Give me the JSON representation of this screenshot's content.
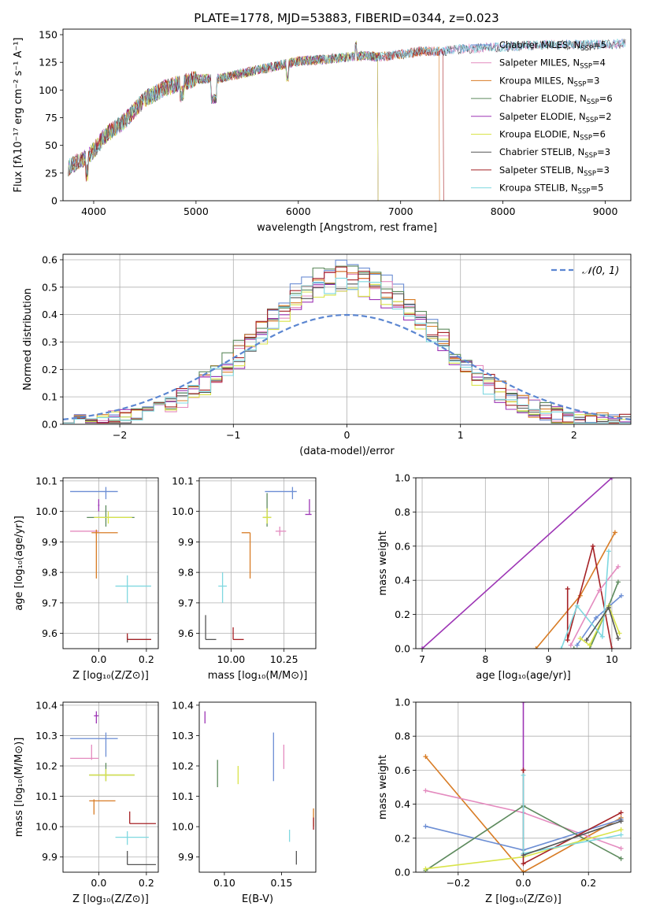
{
  "chart_data": [
    {
      "type": "line",
      "title": "PLATE=1778, MJD=53883, FIBERID=0344, z=0.023",
      "xlabel": "wavelength [Angstrom, rest frame]",
      "ylabel": "Flux [fλ10⁻¹⁷ erg cm⁻² s⁻¹ A⁻¹]",
      "xlim": [
        3700,
        9250
      ],
      "ylim": [
        0,
        155
      ],
      "xticks": [
        "4000",
        "5000",
        "6000",
        "7000",
        "8000",
        "9000"
      ],
      "yticks": [
        "0",
        "25",
        "50",
        "75",
        "100",
        "125",
        "150"
      ],
      "grid": false,
      "legend_position": "top-right",
      "continuum": {
        "x": [
          3750,
          3900,
          4000,
          4100,
          4300,
          4500,
          4700,
          5000,
          5200,
          5500,
          5800,
          6000,
          6300,
          6600,
          6800,
          7000,
          7200,
          7400,
          7600,
          7800,
          8000,
          8200,
          8500,
          8800,
          9000,
          9200
        ],
        "y": [
          30,
          38,
          45,
          58,
          72,
          92,
          102,
          110,
          110,
          116,
          122,
          126,
          128,
          131,
          130,
          132,
          135,
          135,
          137,
          138,
          139,
          140,
          141,
          141,
          141,
          142
        ]
      },
      "series": [
        {
          "name": "Chabrier MILES, N$_{SSP}$=5",
          "label_main": "Chabrier MILES, N",
          "label_sub": "SSP",
          "label_tail": "=5",
          "color": "#6c8ed4",
          "end": 9200
        },
        {
          "name": "Salpeter MILES, N$_{SSP}$=4",
          "label_main": "Salpeter MILES, N",
          "label_sub": "SSP",
          "label_tail": "=4",
          "color": "#e48bbf",
          "end": 9200
        },
        {
          "name": "Kroupa MILES, N$_{SSP}$=3",
          "label_main": "Kroupa MILES, N",
          "label_sub": "SSP",
          "label_tail": "=3",
          "color": "#d87c25",
          "end": 7380
        },
        {
          "name": "Chabrier ELODIE, N$_{SSP}$=6",
          "label_main": "Chabrier ELODIE, N",
          "label_sub": "SSP",
          "label_tail": "=6",
          "color": "#5d8a5d",
          "end": 6780
        },
        {
          "name": "Salpeter ELODIE, N$_{SSP}$=2",
          "label_main": "Salpeter ELODIE, N",
          "label_sub": "SSP",
          "label_tail": "=2",
          "color": "#9d35b5",
          "end": 6780
        },
        {
          "name": "Kroupa ELODIE, N$_{SSP}$=6",
          "label_main": "Kroupa ELODIE, N",
          "label_sub": "SSP",
          "label_tail": "=6",
          "color": "#d9e44a",
          "end": 6780
        },
        {
          "name": "Chabrier STELIB, N$_{SSP}$=3",
          "label_main": "Chabrier STELIB, N",
          "label_sub": "SSP",
          "label_tail": "=3",
          "color": "#555555",
          "end": 9200
        },
        {
          "name": "Salpeter STELIB, N$_{SSP}$=3",
          "label_main": "Salpeter STELIB, N",
          "label_sub": "SSP",
          "label_tail": "=3",
          "color": "#a52125",
          "end": 7420
        },
        {
          "name": "Kroupa STELIB, N$_{SSP}$=5",
          "label_main": "Kroupa STELIB, N",
          "label_sub": "SSP",
          "label_tail": "=5",
          "color": "#7fd8e0",
          "end": 9200
        }
      ]
    },
    {
      "type": "line",
      "xlabel": "(data-model)/error",
      "ylabel": "Normed distribution",
      "xlim": [
        -2.5,
        2.5
      ],
      "ylim": [
        0,
        0.62
      ],
      "xticks": [
        "−2",
        "−1",
        "0",
        "1",
        "2"
      ],
      "yticks": [
        "0.0",
        "0.1",
        "0.2",
        "0.3",
        "0.4",
        "0.5",
        "0.6"
      ],
      "grid": true,
      "legend_position": "top-right",
      "legend_label": "𝒩(0, 1)",
      "reference_curve": {
        "name": "N(0,1)",
        "mean": 0,
        "sigma": 1,
        "color": "#5b86d1"
      },
      "histogram_bin_edges_range": [
        -2.5,
        2.5
      ],
      "histogram_bin_width": 0.1,
      "histogram_peak_values": [
        0.57,
        0.54,
        0.55,
        0.58,
        0.5,
        0.51,
        0.53,
        0.55,
        0.52
      ]
    },
    {
      "type": "scatter",
      "xlabel": "Z [log₁₀(Z/Z⊙)]",
      "ylabel": "age  [log₁₀(age/yr)]",
      "xlim": [
        -0.15,
        0.25
      ],
      "ylim": [
        9.55,
        10.11
      ],
      "xticks": [
        "0.0",
        "0.2"
      ],
      "yticks": [
        "9.6",
        "9.7",
        "9.8",
        "9.9",
        "10.0",
        "10.1"
      ],
      "grid": true,
      "points": [
        {
          "color": "#6c8ed4",
          "x": 0.03,
          "xlo": -0.12,
          "xhi": 0.08,
          "y": 10.065,
          "ylo": 10.04,
          "yhi": 10.08
        },
        {
          "color": "#e48bbf",
          "x": -0.01,
          "xlo": -0.12,
          "xhi": 0.0,
          "y": 9.935,
          "ylo": 9.92,
          "yhi": 9.94
        },
        {
          "color": "#d87c25",
          "x": -0.01,
          "xlo": -0.03,
          "xhi": 0.08,
          "y": 9.93,
          "ylo": 9.78,
          "yhi": 9.94
        },
        {
          "color": "#5d8a5d",
          "x": 0.03,
          "xlo": -0.05,
          "xhi": 0.15,
          "y": 9.98,
          "ylo": 9.95,
          "yhi": 10.02
        },
        {
          "color": "#9d35b5",
          "x": 0.0,
          "xlo": -0.003,
          "xhi": 0.003,
          "y": 10.02,
          "ylo": 10.0,
          "yhi": 10.04
        },
        {
          "color": "#d9e44a",
          "x": 0.04,
          "xlo": -0.02,
          "xhi": 0.14,
          "y": 9.98,
          "ylo": 9.96,
          "yhi": 10.0
        },
        {
          "color": "#555555",
          "x": 0.12,
          "xlo": 0.12,
          "xhi": 0.22,
          "y": 9.58,
          "ylo": 9.57,
          "yhi": 9.59
        },
        {
          "color": "#a52125",
          "x": 0.12,
          "xlo": 0.12,
          "xhi": 0.22,
          "y": 9.58,
          "ylo": 9.58,
          "yhi": 9.6
        },
        {
          "color": "#7fd8e0",
          "x": 0.12,
          "xlo": 0.07,
          "xhi": 0.22,
          "y": 9.755,
          "ylo": 9.7,
          "yhi": 9.79
        }
      ]
    },
    {
      "type": "scatter",
      "xlabel": "mass [log₁₀(M/M⊙)]",
      "ylabel": "",
      "xlim": [
        9.85,
        10.4
      ],
      "ylim": [
        9.55,
        10.11
      ],
      "xticks": [
        "10.00",
        "10.25"
      ],
      "yticks": [
        "9.6",
        "9.7",
        "9.8",
        "9.9",
        "10.0",
        "10.1"
      ],
      "grid": true,
      "points": [
        {
          "color": "#6c8ed4",
          "x": 10.29,
          "xlo": 10.16,
          "xhi": 10.31,
          "y": 10.065,
          "ylo": 10.04,
          "yhi": 10.08
        },
        {
          "color": "#e48bbf",
          "x": 10.23,
          "xlo": 10.21,
          "xhi": 10.26,
          "y": 9.935,
          "ylo": 9.92,
          "yhi": 9.95
        },
        {
          "color": "#d87c25",
          "x": 10.09,
          "xlo": 10.05,
          "xhi": 10.09,
          "y": 9.93,
          "ylo": 9.78,
          "yhi": 9.93
        },
        {
          "color": "#5d8a5d",
          "x": 10.17,
          "xlo": 10.15,
          "xhi": 10.19,
          "y": 9.98,
          "ylo": 9.95,
          "yhi": 10.06
        },
        {
          "color": "#9d35b5",
          "x": 10.37,
          "xlo": 10.35,
          "xhi": 10.38,
          "y": 9.99,
          "ylo": 9.99,
          "yhi": 10.04
        },
        {
          "color": "#d9e44a",
          "x": 10.17,
          "xlo": 10.15,
          "xhi": 10.19,
          "y": 9.98,
          "ylo": 9.96,
          "yhi": 10.01
        },
        {
          "color": "#555555",
          "x": 9.88,
          "xlo": 9.88,
          "xhi": 9.93,
          "y": 9.58,
          "ylo": 9.58,
          "yhi": 9.66
        },
        {
          "color": "#a52125",
          "x": 10.01,
          "xlo": 10.01,
          "xhi": 10.06,
          "y": 9.58,
          "ylo": 9.58,
          "yhi": 9.62
        },
        {
          "color": "#7fd8e0",
          "x": 9.96,
          "xlo": 9.94,
          "xhi": 9.98,
          "y": 9.755,
          "ylo": 9.7,
          "yhi": 9.8
        }
      ]
    },
    {
      "type": "line",
      "xlabel": "age  [log₁₀(age/yr)]",
      "ylabel": "mass weight",
      "xlim": [
        6.9,
        10.3
      ],
      "ylim": [
        0,
        1.0
      ],
      "xticks": [
        "7",
        "8",
        "9",
        "10"
      ],
      "yticks": [
        "0.0",
        "0.2",
        "0.4",
        "0.6",
        "0.8",
        "1.0"
      ],
      "grid": true,
      "series": [
        {
          "color": "#9d35b5",
          "x": [
            7.0,
            10.0
          ],
          "y": [
            0.0,
            1.0
          ]
        },
        {
          "color": "#d87c25",
          "x": [
            8.8,
            9.5,
            10.05
          ],
          "y": [
            0.0,
            0.31,
            0.68
          ]
        },
        {
          "color": "#a52125",
          "x": [
            9.3,
            9.3,
            9.7,
            10.0
          ],
          "y": [
            0.35,
            0.05,
            0.6,
            0.0
          ]
        },
        {
          "color": "#e48bbf",
          "x": [
            9.35,
            9.8,
            10.1
          ],
          "y": [
            0.02,
            0.34,
            0.48
          ]
        },
        {
          "color": "#6c8ed4",
          "x": [
            9.45,
            9.75,
            10.15
          ],
          "y": [
            0.02,
            0.18,
            0.31
          ]
        },
        {
          "color": "#5d8a5d",
          "x": [
            9.4,
            9.65,
            9.95,
            10.1
          ],
          "y": [
            0.0,
            0.0,
            0.25,
            0.39
          ]
        },
        {
          "color": "#d9e44a",
          "x": [
            9.5,
            9.65,
            9.95,
            10.12
          ],
          "y": [
            0.06,
            0.02,
            0.25,
            0.09
          ]
        },
        {
          "color": "#7fd8e0",
          "x": [
            9.2,
            9.45,
            9.85,
            9.95
          ],
          "y": [
            0.0,
            0.25,
            0.07,
            0.57
          ]
        },
        {
          "color": "#555555",
          "x": [
            9.6,
            9.95,
            10.1
          ],
          "y": [
            0.05,
            0.24,
            0.06
          ]
        }
      ]
    },
    {
      "type": "scatter",
      "xlabel": "Z [log₁₀(Z/Z⊙)]",
      "ylabel": "mass [log₁₀(M/M⊙)]",
      "xlim": [
        -0.15,
        0.25
      ],
      "ylim": [
        9.85,
        10.41
      ],
      "xticks": [
        "0.0",
        "0.2"
      ],
      "yticks": [
        "9.9",
        "10.0",
        "10.1",
        "10.2",
        "10.3",
        "10.4"
      ],
      "grid": true,
      "points": [
        {
          "color": "#6c8ed4",
          "x": 0.03,
          "xlo": -0.12,
          "xhi": 0.08,
          "y": 10.29,
          "ylo": 10.23,
          "yhi": 10.31
        },
        {
          "color": "#e48bbf",
          "x": -0.03,
          "xlo": -0.12,
          "xhi": 0.0,
          "y": 10.225,
          "ylo": 10.22,
          "yhi": 10.27
        },
        {
          "color": "#d87c25",
          "x": -0.02,
          "xlo": -0.04,
          "xhi": 0.07,
          "y": 10.085,
          "ylo": 10.04,
          "yhi": 10.09
        },
        {
          "color": "#5d8a5d",
          "x": 0.03,
          "xlo": -0.04,
          "xhi": 0.15,
          "y": 10.17,
          "ylo": 10.15,
          "yhi": 10.21
        },
        {
          "color": "#9d35b5",
          "x": -0.01,
          "xlo": -0.02,
          "xhi": 0.0,
          "y": 10.365,
          "ylo": 10.34,
          "yhi": 10.38
        },
        {
          "color": "#d9e44a",
          "x": 0.03,
          "xlo": -0.04,
          "xhi": 0.15,
          "y": 10.17,
          "ylo": 10.15,
          "yhi": 10.19
        },
        {
          "color": "#555555",
          "x": 0.12,
          "xlo": 0.12,
          "xhi": 0.24,
          "y": 9.875,
          "ylo": 9.875,
          "yhi": 9.92
        },
        {
          "color": "#a52125",
          "x": 0.13,
          "xlo": 0.13,
          "xhi": 0.24,
          "y": 10.01,
          "ylo": 10.01,
          "yhi": 10.05
        },
        {
          "color": "#7fd8e0",
          "x": 0.12,
          "xlo": 0.07,
          "xhi": 0.21,
          "y": 9.965,
          "ylo": 9.94,
          "yhi": 9.985
        }
      ]
    },
    {
      "type": "scatter",
      "xlabel": "E(B-V)",
      "ylabel": "",
      "xlim": [
        0.078,
        0.18
      ],
      "ylim": [
        9.85,
        10.41
      ],
      "xticks": [
        "0.10",
        "0.15"
      ],
      "yticks": [
        "9.9",
        "10.0",
        "10.1",
        "10.2",
        "10.3",
        "10.4"
      ],
      "grid": false,
      "points": [
        {
          "color": "#6c8ed4",
          "x": 0.143,
          "y": 10.23,
          "ylo": 10.15,
          "yhi": 10.31
        },
        {
          "color": "#e48bbf",
          "x": 0.152,
          "y": 10.23,
          "ylo": 10.19,
          "yhi": 10.27
        },
        {
          "color": "#d87c25",
          "x": 0.178,
          "y": 10.04,
          "ylo": 10.0,
          "yhi": 10.06
        },
        {
          "color": "#5d8a5d",
          "x": 0.094,
          "y": 10.18,
          "ylo": 10.13,
          "yhi": 10.22
        },
        {
          "color": "#9d35b5",
          "x": 0.083,
          "y": 10.36,
          "ylo": 10.34,
          "yhi": 10.38
        },
        {
          "color": "#d9e44a",
          "x": 0.112,
          "y": 10.17,
          "ylo": 10.14,
          "yhi": 10.2
        },
        {
          "color": "#555555",
          "x": 0.163,
          "y": 9.9,
          "ylo": 9.875,
          "yhi": 9.92
        },
        {
          "color": "#a52125",
          "x": 0.178,
          "y": 10.01,
          "ylo": 9.99,
          "yhi": 10.03
        },
        {
          "color": "#7fd8e0",
          "x": 0.157,
          "y": 9.97,
          "ylo": 9.95,
          "yhi": 9.99
        }
      ]
    },
    {
      "type": "line",
      "xlabel": "Z [log₁₀(Z/Z⊙)]",
      "ylabel": "mass weight",
      "xlim": [
        -0.33,
        0.33
      ],
      "ylim": [
        0,
        1.0
      ],
      "xticks": [
        "−0.2",
        "0.0",
        "0.2"
      ],
      "yticks": [
        "0.0",
        "0.2",
        "0.4",
        "0.6",
        "0.8",
        "1.0"
      ],
      "grid": true,
      "series": [
        {
          "color": "#9d35b5",
          "x": [
            0.0,
            0.0
          ],
          "y": [
            0.6,
            1.0
          ]
        },
        {
          "color": "#d87c25",
          "x": [
            -0.3,
            0.0,
            0.3
          ],
          "y": [
            0.68,
            0.0,
            0.32
          ]
        },
        {
          "color": "#e48bbf",
          "x": [
            -0.3,
            0.0,
            0.3
          ],
          "y": [
            0.48,
            0.35,
            0.14
          ]
        },
        {
          "color": "#6c8ed4",
          "x": [
            -0.3,
            0.0,
            0.3
          ],
          "y": [
            0.27,
            0.13,
            0.31
          ]
        },
        {
          "color": "#5d8a5d",
          "x": [
            -0.3,
            0.0,
            0.3
          ],
          "y": [
            0.01,
            0.39,
            0.08
          ]
        },
        {
          "color": "#d9e44a",
          "x": [
            -0.3,
            0.0,
            0.3
          ],
          "y": [
            0.02,
            0.09,
            0.25
          ]
        },
        {
          "color": "#a52125",
          "x": [
            0.0,
            0.0,
            0.3
          ],
          "y": [
            0.6,
            0.05,
            0.35
          ]
        },
        {
          "color": "#7fd8e0",
          "x": [
            0.0,
            0.0,
            0.3
          ],
          "y": [
            0.57,
            0.11,
            0.22
          ]
        },
        {
          "color": "#555555",
          "x": [
            0.0,
            0.3
          ],
          "y": [
            0.1,
            0.3
          ]
        }
      ]
    }
  ]
}
